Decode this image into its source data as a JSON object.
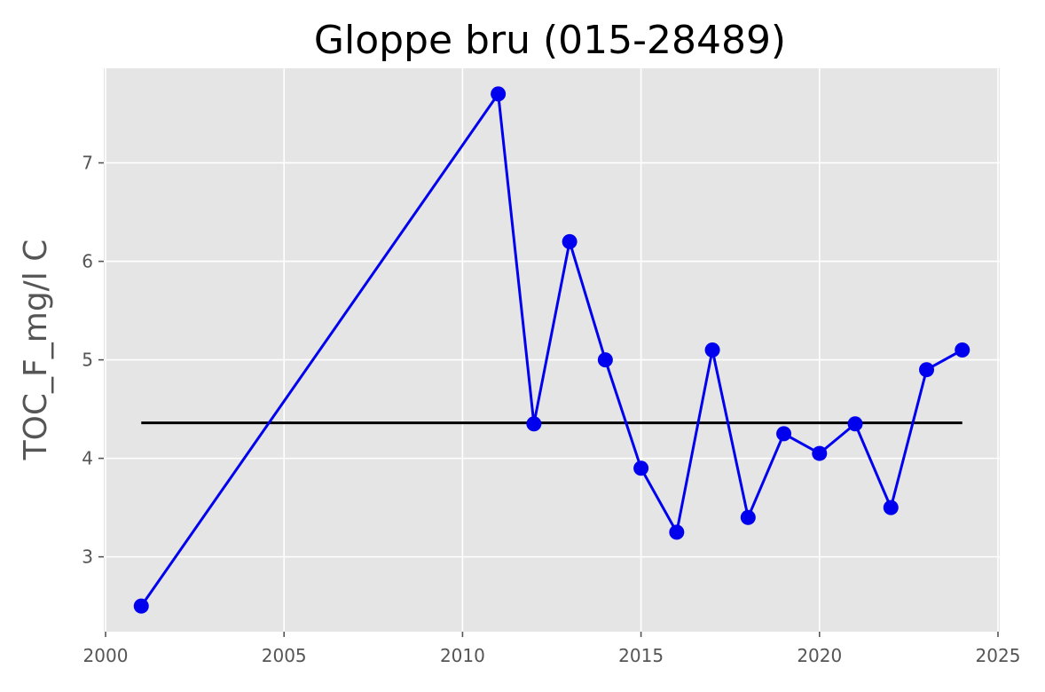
{
  "chart_data": {
    "type": "line",
    "title": "Gloppe bru (015-28489)",
    "xlabel": "",
    "ylabel": "TOC_F_mg/l C",
    "xlim": [
      1999.95,
      2025.05
    ],
    "ylim": [
      2.24,
      7.96
    ],
    "x_ticks": [
      2000,
      2005,
      2010,
      2015,
      2020,
      2025
    ],
    "y_ticks": [
      3,
      4,
      5,
      6,
      7
    ],
    "grid": true,
    "series": [
      {
        "color": "#0000ee",
        "marker": "circle",
        "x": [
          2001,
          2011,
          2012,
          2013,
          2014,
          2015,
          2016,
          2017,
          2018,
          2019,
          2020,
          2021,
          2022,
          2023,
          2024
        ],
        "y": [
          2.5,
          7.7,
          4.35,
          6.2,
          5.0,
          3.9,
          3.25,
          5.1,
          3.4,
          4.25,
          4.05,
          4.35,
          3.5,
          4.9,
          5.1
        ]
      }
    ],
    "reference_line": {
      "color": "#000000",
      "x": [
        2001,
        2024
      ],
      "y": 4.36
    },
    "colors": {
      "plot_background": "#e5e5e5",
      "grid": "#ffffff",
      "text": "#555555"
    }
  }
}
